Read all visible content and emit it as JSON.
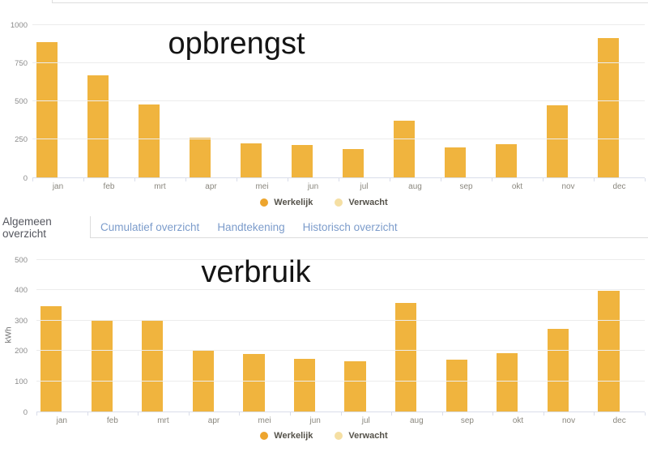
{
  "tabs": {
    "items": [
      {
        "label": "Algemeen overzicht",
        "active": true
      },
      {
        "label": "Cumulatief overzicht",
        "active": false
      },
      {
        "label": "Handtekening",
        "active": false
      },
      {
        "label": "Historisch overzicht",
        "active": false
      }
    ]
  },
  "colors": {
    "bar": "#F0B43E",
    "legend_werkelijk_dot": "#EDA52E",
    "legend_verwacht_dot": "#F5DFA3",
    "gridline": "#ECECEC",
    "axis_line": "#D9DDEA",
    "y_tick_text": "#8B8B8B",
    "x_tick_text": "#8A877E",
    "legend_text": "#55524A",
    "tab_active_text": "#54565E",
    "tab_inactive_text": "#7C9CCB"
  },
  "chart_data": [
    {
      "type": "bar",
      "title": "opbrengst",
      "categories": [
        "jan",
        "feb",
        "mrt",
        "apr",
        "mei",
        "jun",
        "jul",
        "aug",
        "sep",
        "okt",
        "nov",
        "dec"
      ],
      "series": [
        {
          "name": "Werkelijk",
          "values": [
            890,
            670,
            478,
            262,
            224,
            212,
            188,
            372,
            196,
            220,
            472,
            913
          ]
        }
      ],
      "legend": [
        {
          "label": "Werkelijk",
          "color": "#EDA52E"
        },
        {
          "label": "Verwacht",
          "color": "#F5DFA3"
        }
      ],
      "bar_color": "#F0B43E",
      "xlabel": "",
      "ylabel": "",
      "ylim": [
        0,
        1000
      ],
      "yticks": [
        0,
        250,
        500,
        750,
        1000
      ],
      "grid": true,
      "legend_position": "bottom"
    },
    {
      "type": "bar",
      "title": "verbruik",
      "categories": [
        "jan",
        "feb",
        "mrt",
        "apr",
        "mei",
        "jun",
        "jul",
        "aug",
        "sep",
        "okt",
        "nov",
        "dec"
      ],
      "series": [
        {
          "name": "Werkelijk",
          "values": [
            347,
            300,
            302,
            202,
            190,
            175,
            167,
            357,
            172,
            192,
            272,
            398
          ]
        }
      ],
      "legend": [
        {
          "label": "Werkelijk",
          "color": "#EDA52E"
        },
        {
          "label": "Verwacht",
          "color": "#F5DFA3"
        }
      ],
      "bar_color": "#F0B43E",
      "xlabel": "",
      "ylabel": "kWh",
      "ylim": [
        0,
        500
      ],
      "yticks": [
        0,
        100,
        200,
        300,
        400,
        500
      ],
      "grid": true,
      "legend_position": "bottom"
    }
  ]
}
